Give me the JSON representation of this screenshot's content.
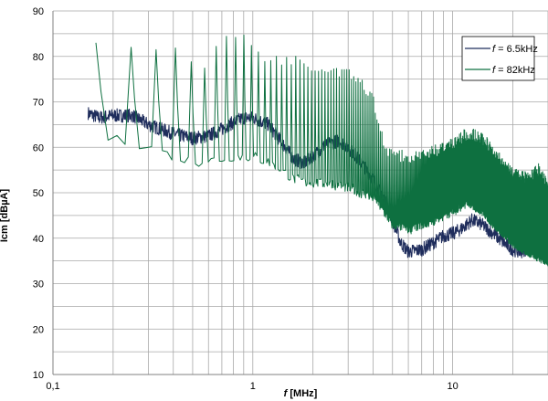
{
  "chart_data": {
    "type": "line",
    "title": "",
    "xlabel": "f [MHz]",
    "xlabel_italic_part": "f",
    "xlabel_rest": " [MHz]",
    "ylabel": "Icm [dBµA]",
    "xscale": "log",
    "xlim": [
      0.1,
      30
    ],
    "ylim": [
      10,
      90
    ],
    "ytick_step": 5,
    "ytick_label_step": 10,
    "x_tick_labels": [
      {
        "value": 0.1,
        "label": "0,1"
      },
      {
        "value": 1,
        "label": "1"
      },
      {
        "value": 10,
        "label": "10"
      }
    ],
    "y_tick_labels": [
      "10",
      "20",
      "30",
      "40",
      "50",
      "60",
      "70",
      "80",
      "90"
    ],
    "grid": true,
    "legend_position": "top-right",
    "series": [
      {
        "name": "f = 6.5kHz",
        "name_italic_part": "f",
        "name_rest": " = 6.5kHz",
        "color": "#1f2d5c",
        "envelope": [
          [
            0.15,
            67.5
          ],
          [
            0.17,
            66.5
          ],
          [
            0.2,
            67
          ],
          [
            0.25,
            67
          ],
          [
            0.3,
            65
          ],
          [
            0.4,
            63
          ],
          [
            0.5,
            62
          ],
          [
            0.6,
            62.5
          ],
          [
            0.7,
            64
          ],
          [
            0.8,
            65.5
          ],
          [
            0.9,
            66.5
          ],
          [
            1.0,
            66.5
          ],
          [
            1.2,
            65
          ],
          [
            1.4,
            61
          ],
          [
            1.6,
            57.5
          ],
          [
            1.8,
            56.5
          ],
          [
            2.0,
            58
          ],
          [
            2.3,
            60.5
          ],
          [
            2.7,
            61.5
          ],
          [
            3.0,
            60
          ],
          [
            3.5,
            56.5
          ],
          [
            4.0,
            53
          ],
          [
            4.5,
            49
          ],
          [
            5.0,
            44
          ],
          [
            5.5,
            39
          ],
          [
            6.0,
            37
          ],
          [
            7.0,
            37.5
          ],
          [
            8.0,
            39
          ],
          [
            9.0,
            40.5
          ],
          [
            10.0,
            41
          ],
          [
            11.0,
            42
          ],
          [
            12.5,
            44
          ],
          [
            14.0,
            43
          ],
          [
            16.0,
            41
          ],
          [
            18.0,
            39
          ],
          [
            20.0,
            37.5
          ],
          [
            22.0,
            37
          ],
          [
            24.0,
            38
          ],
          [
            26.0,
            39.5
          ],
          [
            28.0,
            40.5
          ],
          [
            30.0,
            41
          ]
        ],
        "ripple": 1.5
      },
      {
        "name": "f = 82kHz",
        "name_italic_part": "f",
        "name_rest": " = 82kHz",
        "color": "#0e7040",
        "peak_spacing_mhz": 0.082,
        "peaks": [
          [
            0.15,
            72
          ],
          [
            0.16,
            82.5
          ],
          [
            0.25,
            83.5
          ],
          [
            0.33,
            82
          ],
          [
            0.41,
            81
          ],
          [
            0.49,
            79
          ],
          [
            0.57,
            78
          ],
          [
            0.66,
            82
          ],
          [
            0.74,
            84
          ],
          [
            0.82,
            84
          ],
          [
            0.9,
            85
          ],
          [
            1.0,
            81
          ],
          [
            1.1,
            80
          ],
          [
            1.3,
            79
          ],
          [
            1.6,
            79
          ],
          [
            2.0,
            78
          ],
          [
            2.5,
            77
          ],
          [
            3.0,
            76
          ],
          [
            3.5,
            74
          ],
          [
            4.0,
            70
          ],
          [
            4.3,
            65
          ],
          [
            4.6,
            59
          ],
          [
            5.0,
            58
          ],
          [
            6.0,
            58
          ],
          [
            7.0,
            58
          ],
          [
            8.0,
            59
          ],
          [
            10.0,
            61
          ],
          [
            12.0,
            63
          ],
          [
            14.0,
            62
          ],
          [
            16.0,
            59
          ],
          [
            18.0,
            56
          ],
          [
            20.0,
            54
          ],
          [
            24.0,
            53
          ],
          [
            27.0,
            55
          ],
          [
            30.0,
            51
          ]
        ],
        "valleys": [
          [
            0.15,
            72
          ],
          [
            0.17,
            63
          ],
          [
            0.2,
            61.5
          ],
          [
            0.25,
            61
          ],
          [
            0.3,
            60
          ],
          [
            0.4,
            58
          ],
          [
            0.5,
            57
          ],
          [
            0.6,
            57
          ],
          [
            0.7,
            57.5
          ],
          [
            0.8,
            58
          ],
          [
            1.0,
            58
          ],
          [
            1.3,
            56
          ],
          [
            1.6,
            53
          ],
          [
            2.0,
            52
          ],
          [
            2.5,
            52
          ],
          [
            3.0,
            51
          ],
          [
            3.5,
            50
          ],
          [
            4.0,
            49
          ],
          [
            4.5,
            46
          ],
          [
            5.0,
            43
          ],
          [
            6.0,
            42
          ],
          [
            7.0,
            43
          ],
          [
            8.0,
            44
          ],
          [
            10.0,
            46
          ],
          [
            12.0,
            48
          ],
          [
            14.0,
            46
          ],
          [
            16.0,
            43
          ],
          [
            18.0,
            41
          ],
          [
            20.0,
            39
          ],
          [
            24.0,
            37
          ],
          [
            27.0,
            36
          ],
          [
            30.0,
            35
          ]
        ]
      }
    ]
  }
}
